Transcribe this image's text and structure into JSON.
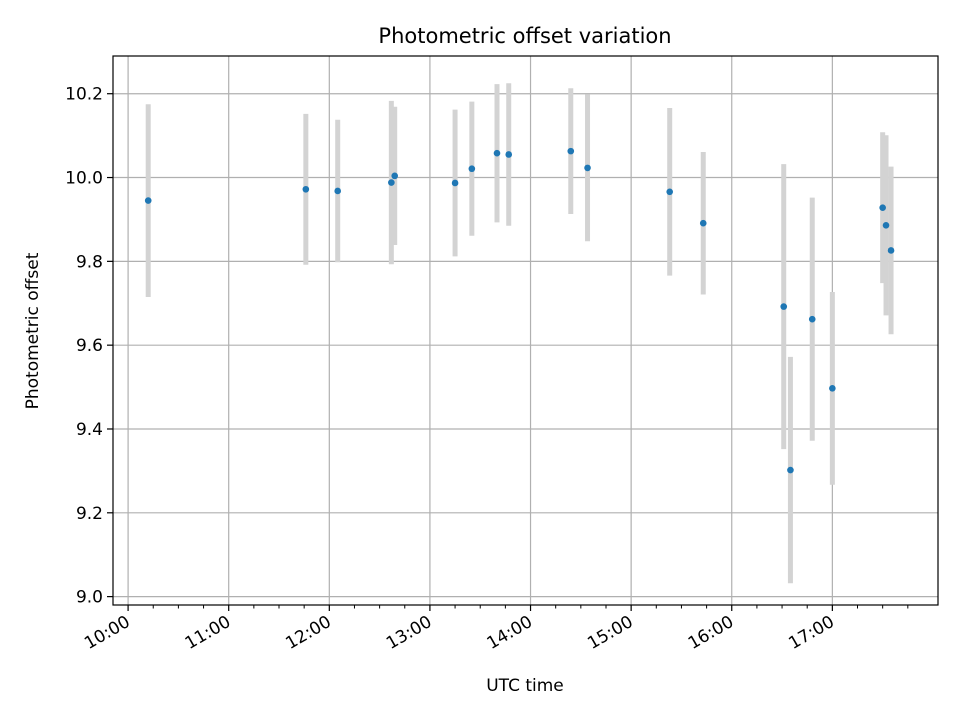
{
  "chart_data": {
    "type": "scatter",
    "title": "Photometric offset variation",
    "xlabel": "UTC time",
    "ylabel": "Photometric offset",
    "x_ticks": [
      "10:00",
      "11:00",
      "12:00",
      "13:00",
      "14:00",
      "15:00",
      "16:00",
      "17:00"
    ],
    "x_tick_hours": [
      10,
      11,
      12,
      13,
      14,
      15,
      16,
      17
    ],
    "y_ticks": [
      "9.0",
      "9.2",
      "9.4",
      "9.6",
      "9.8",
      "10.0",
      "10.2"
    ],
    "y_tick_values": [
      9.0,
      9.2,
      9.4,
      9.6,
      9.8,
      10.0,
      10.2
    ],
    "xlim": [
      "09:51",
      "18:03"
    ],
    "ylim": [
      8.98,
      10.29
    ],
    "grid": true,
    "colors": {
      "point": "#1f77b4",
      "errorbar": "#d3d3d3",
      "grid": "#b0b0b0"
    },
    "points": [
      {
        "time": "10:12",
        "y": 9.945,
        "yerr": 0.23
      },
      {
        "time": "11:46",
        "y": 9.972,
        "yerr": 0.18
      },
      {
        "time": "12:05",
        "y": 9.968,
        "yerr": 0.17
      },
      {
        "time": "12:37",
        "y": 9.988,
        "yerr": 0.195
      },
      {
        "time": "12:39",
        "y": 10.004,
        "yerr": 0.165
      },
      {
        "time": "13:15",
        "y": 9.987,
        "yerr": 0.175
      },
      {
        "time": "13:25",
        "y": 10.021,
        "yerr": 0.16
      },
      {
        "time": "13:40",
        "y": 10.058,
        "yerr": 0.165
      },
      {
        "time": "13:47",
        "y": 10.055,
        "yerr": 0.17
      },
      {
        "time": "14:24",
        "y": 10.063,
        "yerr": 0.15
      },
      {
        "time": "14:34",
        "y": 10.023,
        "yerr": 0.175
      },
      {
        "time": "15:23",
        "y": 9.966,
        "yerr": 0.2
      },
      {
        "time": "15:43",
        "y": 9.891,
        "yerr": 0.17
      },
      {
        "time": "16:31",
        "y": 9.692,
        "yerr": 0.34
      },
      {
        "time": "16:35",
        "y": 9.302,
        "yerr": 0.27
      },
      {
        "time": "16:48",
        "y": 9.662,
        "yerr": 0.29
      },
      {
        "time": "17:00",
        "y": 9.497,
        "yerr": 0.23
      },
      {
        "time": "17:30",
        "y": 9.928,
        "yerr": 0.18
      },
      {
        "time": "17:32",
        "y": 9.886,
        "yerr": 0.215
      },
      {
        "time": "17:35",
        "y": 9.826,
        "yerr": 0.2
      }
    ]
  }
}
